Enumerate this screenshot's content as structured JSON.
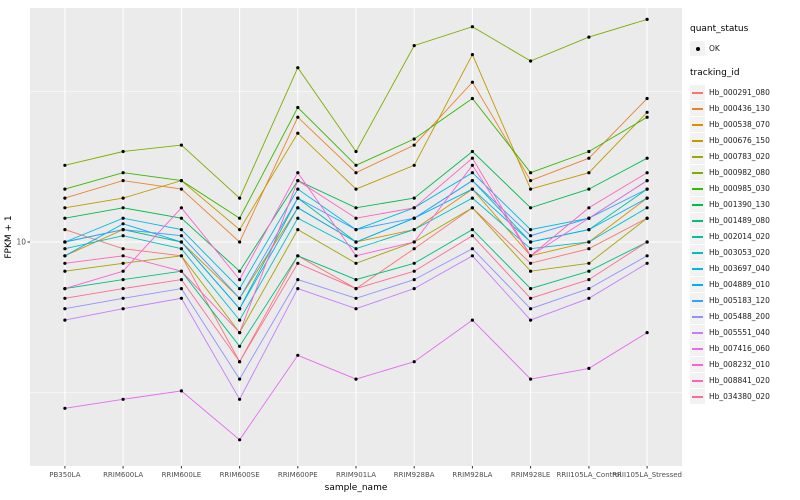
{
  "figure": {
    "xlabel": "sample_name",
    "ylabel": "FPKM + 1",
    "y_tick_label": "10"
  },
  "legend": {
    "quant_status_title": "quant_status",
    "ok_label": "OK",
    "tracking_title": "tracking_id"
  },
  "chart_data": {
    "type": "line",
    "title": "",
    "xlabel": "sample_name",
    "ylabel": "FPKM + 1",
    "y_scale": "log10",
    "ylim": [
      1.8,
      60
    ],
    "y_ticks": [
      10
    ],
    "y_minor": [
      3.162,
      31.62
    ],
    "panel_bg": "#EBEBEB",
    "grid_color": "#FFFFFF",
    "point_color": "#000000",
    "tick_label_color": "#4D4D4D",
    "axis_title_color": "#000000",
    "legend_position": "right",
    "quant_status_legend": {
      "title": "quant_status",
      "entries": [
        {
          "label": "OK",
          "marker": "point"
        }
      ]
    },
    "series_legend_title": "tracking_id",
    "categories": [
      "PB350LA",
      "RRIM600LA",
      "RRIM600LE",
      "RRIM600SE",
      "RRIM600PE",
      "RRIM901LA",
      "RRIM928BA",
      "RRIM928LA",
      "RRIM928LE",
      "RRII105LA_Control",
      "RRII105LA_Stressed"
    ],
    "series": [
      {
        "name": "Hb_000291_080",
        "color": "#F8766D",
        "values": [
          11,
          9.5,
          9,
          4,
          9,
          7,
          9.5,
          13,
          8.5,
          9.5,
          12
        ]
      },
      {
        "name": "Hb_000436_130",
        "color": "#EA8331",
        "values": [
          14,
          16,
          15,
          10,
          26,
          17,
          21,
          34,
          16,
          19,
          30
        ]
      },
      {
        "name": "Hb_000538_070",
        "color": "#D89000",
        "values": [
          9,
          11,
          10,
          6.5,
          13,
          10,
          11,
          15,
          9,
          10,
          14
        ]
      },
      {
        "name": "Hb_000676_150",
        "color": "#C09B00",
        "values": [
          13,
          14,
          16,
          11,
          23,
          15,
          18,
          42,
          15,
          17,
          27
        ]
      },
      {
        "name": "Hb_000783_020",
        "color": "#A3A500",
        "values": [
          8,
          8.5,
          9,
          5,
          11,
          8.5,
          10,
          13,
          8,
          8.5,
          12
        ]
      },
      {
        "name": "Hb_000982_080",
        "color": "#7CAE00",
        "values": [
          18,
          20,
          21,
          14,
          38,
          20,
          45,
          52,
          40,
          48,
          55
        ]
      },
      {
        "name": "Hb_000985_030",
        "color": "#39B600",
        "values": [
          15,
          17,
          16,
          12,
          28,
          18,
          22,
          30,
          17,
          20,
          26
        ]
      },
      {
        "name": "Hb_001390_130",
        "color": "#00BB4E",
        "values": [
          12,
          13,
          12,
          8,
          16,
          13,
          14,
          20,
          13,
          15,
          19
        ]
      },
      {
        "name": "Hb_001489_080",
        "color": "#00BF7D",
        "values": [
          7,
          7.5,
          8,
          4.5,
          9,
          7.5,
          8.5,
          11,
          7,
          8,
          10
        ]
      },
      {
        "name": "Hb_002014_020",
        "color": "#00C1A3",
        "values": [
          10,
          11,
          10,
          6,
          14,
          10,
          12,
          16,
          10,
          11,
          15
        ]
      },
      {
        "name": "Hb_003053_020",
        "color": "#00BFC4",
        "values": [
          9.5,
          10.5,
          9.5,
          5.5,
          12,
          9.5,
          11,
          14,
          9.5,
          10,
          13
        ]
      },
      {
        "name": "Hb_003697_040",
        "color": "#00BAE0",
        "values": [
          10,
          12,
          11,
          7,
          15,
          11,
          13,
          17,
          11,
          12,
          16
        ]
      },
      {
        "name": "Hb_004889_010",
        "color": "#00B0F6",
        "values": [
          9,
          11.5,
          10,
          6,
          13,
          10,
          12,
          15,
          10,
          11,
          14
        ]
      },
      {
        "name": "Hb_005183_120",
        "color": "#35A2FF",
        "values": [
          10,
          11,
          10.5,
          6.5,
          14,
          11,
          12,
          16,
          10.5,
          12,
          15
        ]
      },
      {
        "name": "Hb_005488_200",
        "color": "#9590FF",
        "values": [
          6,
          6.5,
          7,
          3.5,
          7.5,
          6.5,
          7.5,
          9.5,
          6,
          7,
          9
        ]
      },
      {
        "name": "Hb_005551_040",
        "color": "#C77CFF",
        "values": [
          5.5,
          6,
          6.5,
          3,
          7,
          6,
          7,
          9,
          5.5,
          6.5,
          8.5
        ]
      },
      {
        "name": "Hb_007416_060",
        "color": "#E76BF3",
        "values": [
          2.8,
          3,
          3.2,
          2.2,
          4.2,
          3.5,
          4,
          5.5,
          3.5,
          3.8,
          5
        ]
      },
      {
        "name": "Hb_008232_010",
        "color": "#FA62DB",
        "values": [
          7,
          8,
          13,
          7.5,
          17,
          9,
          10,
          18,
          9,
          12,
          16
        ]
      },
      {
        "name": "Hb_008841_020",
        "color": "#FF62BC",
        "values": [
          8.5,
          9,
          8,
          5,
          16,
          12,
          13,
          19,
          9,
          13,
          17
        ]
      },
      {
        "name": "Hb_034380_020",
        "color": "#FF6A98",
        "values": [
          6.5,
          7,
          7.5,
          4,
          8.5,
          7,
          8,
          10.5,
          6.5,
          7.5,
          10
        ]
      }
    ]
  }
}
